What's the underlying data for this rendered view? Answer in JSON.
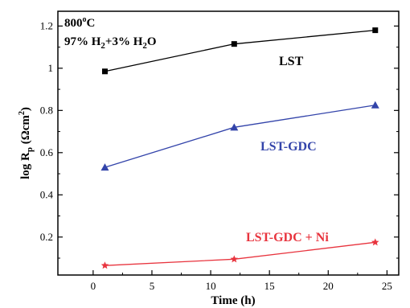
{
  "chart_data": {
    "type": "line",
    "xlabel": "Time (h)",
    "ylabel_main": "log R",
    "ylabel_sub": "p",
    "ylabel_units_open": " (Ωcm",
    "ylabel_units_sup": "2",
    "ylabel_units_close": ")",
    "xlim": [
      -3,
      26
    ],
    "ylim": [
      0.02,
      1.27
    ],
    "xticks": [
      0,
      5,
      10,
      15,
      20,
      25
    ],
    "yticks": [
      0.2,
      0.4,
      0.6,
      0.8,
      1.0,
      1.2
    ],
    "ytick_labels": [
      "0.2",
      "0.4",
      "0.6",
      "0.8",
      "1",
      "1.2"
    ],
    "annotation": {
      "temperature": "800",
      "degree": "o",
      "temperature_unit": "C",
      "gas_prefix": "97% H",
      "gas_sub1": "2",
      "gas_mid": "+3% H",
      "gas_sub2": "2",
      "gas_suffix": "O"
    },
    "series": [
      {
        "name": "LST",
        "marker": "square",
        "color": "#000000",
        "x": [
          1,
          12,
          24
        ],
        "y": [
          0.985,
          1.115,
          1.18
        ]
      },
      {
        "name": "LST-GDC",
        "marker": "triangle",
        "color": "#3344aa",
        "x": [
          1,
          12,
          24
        ],
        "y": [
          0.53,
          0.72,
          0.825
        ]
      },
      {
        "name": "LST-GDC + Ni",
        "marker": "star",
        "color": "#e8343e",
        "x": [
          1,
          12,
          24
        ],
        "y": [
          0.065,
          0.095,
          0.175
        ]
      }
    ]
  }
}
